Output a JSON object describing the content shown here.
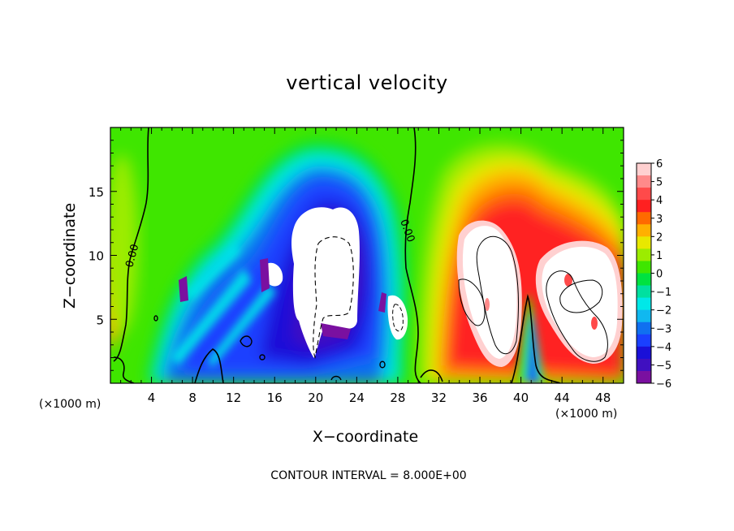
{
  "chart_data": {
    "type": "heatmap",
    "title": "vertical velocity",
    "xlabel": "X−coordinate",
    "ylabel": "Z−coordinate",
    "x_unit": "(×1000 m)",
    "y_unit": "(×1000 m)",
    "xlim": [
      0,
      50
    ],
    "ylim": [
      0,
      20
    ],
    "x_ticks": [
      4,
      8,
      12,
      16,
      20,
      24,
      28,
      32,
      36,
      40,
      44,
      48
    ],
    "x_tick_labels": [
      "4",
      "8",
      "12",
      "16",
      "20",
      "24",
      "28",
      "32",
      "36",
      "40",
      "44",
      "48"
    ],
    "y_ticks": [
      5,
      10,
      15
    ],
    "y_tick_labels": [
      "5",
      "10",
      "15"
    ],
    "colorbar": {
      "levels": [
        6,
        5,
        4,
        3,
        2,
        1,
        0,
        -1,
        -2,
        -3,
        -4,
        -5,
        -6
      ],
      "labels": [
        "6",
        "5",
        "4",
        "3",
        "2",
        "1",
        "0",
        "−1",
        "−2",
        "−3",
        "−4",
        "−5",
        "−6"
      ],
      "colors": [
        "#ffd0d0",
        "#ff8a8a",
        "#ff4a4a",
        "#ff2020",
        "#ff6a00",
        "#ffb000",
        "#e8e800",
        "#9cec00",
        "#3fe600",
        "#00e240",
        "#00e0a0",
        "#00e8e8",
        "#10b8f0",
        "#1070f0",
        "#1a40ff",
        "#1a10d8",
        "#4010c0",
        "#7a10a0"
      ]
    },
    "contour_labels": [
      {
        "text": "0.00",
        "x": 2.0,
        "y": 10.2
      },
      {
        "text": "0.00",
        "x": 29.2,
        "y": 11.7
      }
    ],
    "features": [
      {
        "name": "updraft-core-1",
        "x": 36.5,
        "z": 8.0,
        "value_range": "> 6"
      },
      {
        "name": "updraft-core-2",
        "x": 45.5,
        "z": 6.0,
        "value_range": "> 6"
      },
      {
        "name": "downdraft-core",
        "x": 21.5,
        "z": 8.5,
        "value_range": "< -6"
      },
      {
        "name": "downdraft-small",
        "x": 27.5,
        "z": 5.0,
        "value_range": "< -6"
      }
    ],
    "grid": false,
    "legend": "right"
  },
  "footnote": "CONTOUR INTERVAL = 8.000E+00"
}
